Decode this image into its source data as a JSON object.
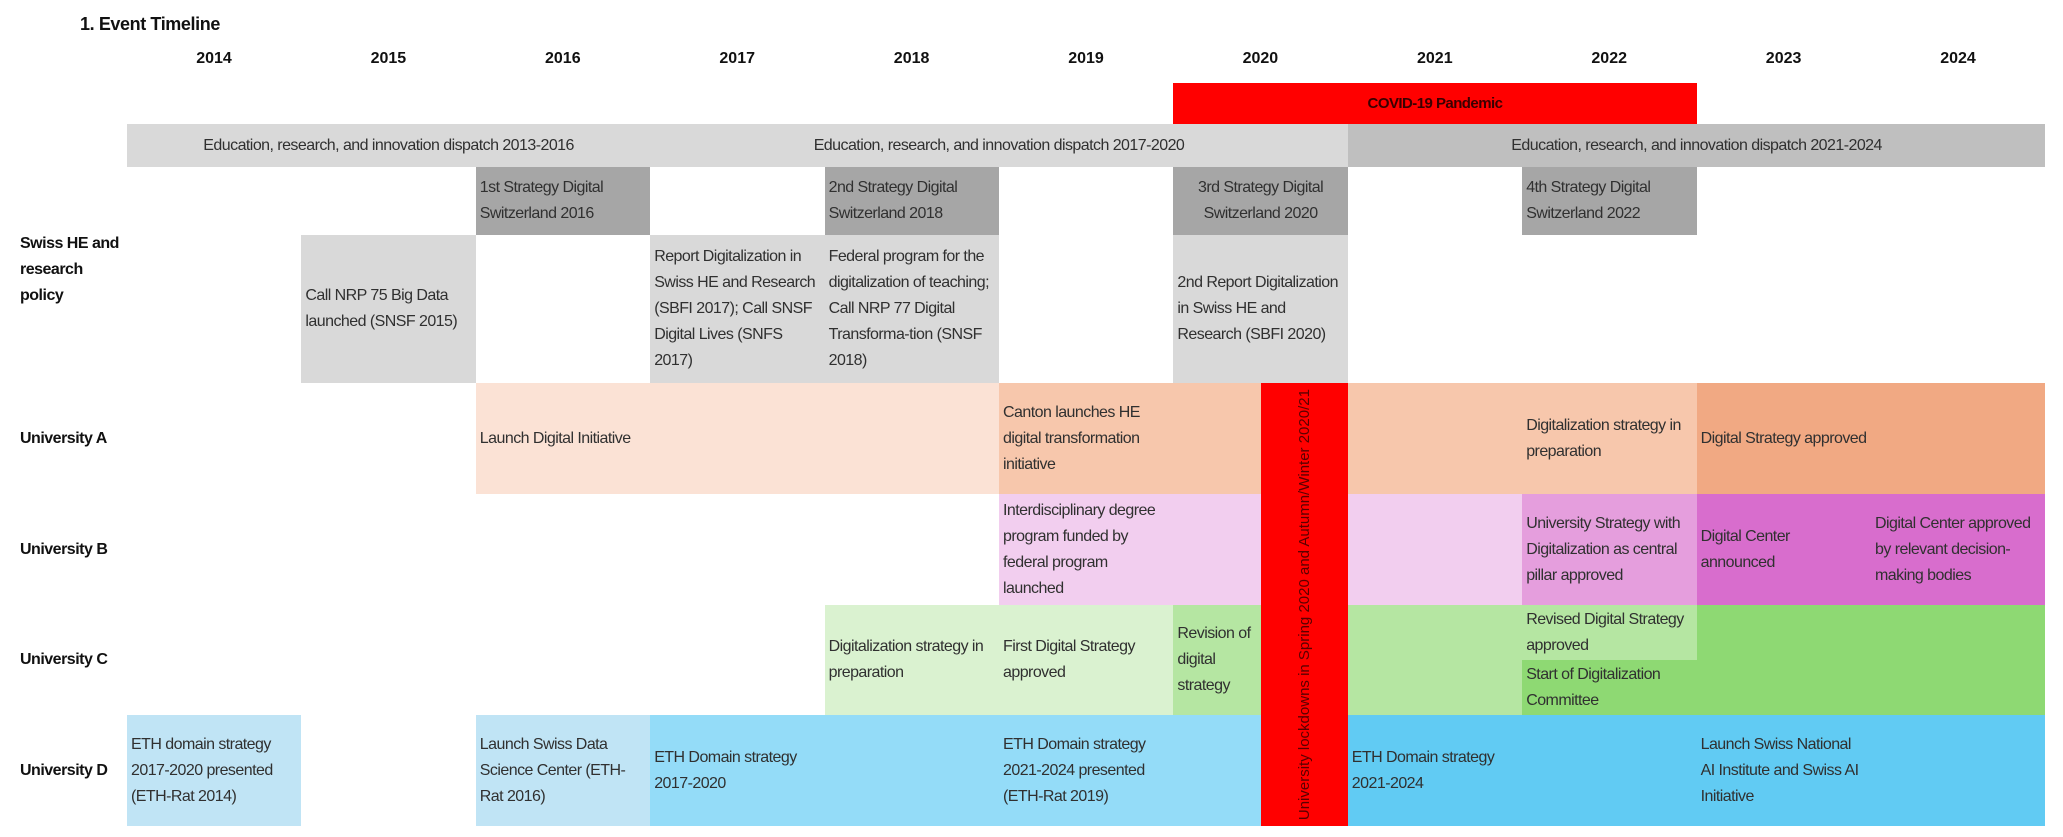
{
  "title": "1. Event Timeline",
  "years": [
    "2014",
    "2015",
    "2016",
    "2017",
    "2018",
    "2019",
    "2020",
    "2021",
    "2022",
    "2023",
    "2024"
  ],
  "row_labels": {
    "policy": "Swiss HE and research policy",
    "A": "University A",
    "B": "University B",
    "C": "University C",
    "D": "University D"
  },
  "blocks": [
    {
      "lane": "covid",
      "start": 2020,
      "end": 2023,
      "color": "#ff0000",
      "labels": [
        {
          "at": 2020,
          "span": 3,
          "text": "COVID-19 Pandemic",
          "style": "center bold"
        }
      ]
    },
    {
      "lane": "dispatch",
      "start": 2014,
      "end": 2017,
      "color": "#d9d9d9",
      "labels": [
        {
          "at": 2014,
          "span": 3,
          "text": "Education, research, and innovation dispatch 2013-2016",
          "style": "center"
        }
      ]
    },
    {
      "lane": "dispatch",
      "start": 2017,
      "end": 2021,
      "color": "#d9d9d9",
      "labels": [
        {
          "at": 2017,
          "span": 4,
          "text": "Education, research, and innovation dispatch 2017-2020",
          "style": "center"
        }
      ]
    },
    {
      "lane": "dispatch",
      "start": 2021,
      "end": 2025,
      "color": "#bfbfbf",
      "labels": [
        {
          "at": 2021,
          "span": 4,
          "text": "Education, research, and innovation dispatch 2021-2024",
          "style": "center"
        }
      ]
    },
    {
      "lane": "strategy",
      "start": 2016,
      "end": 2017,
      "color": "#a6a6a6",
      "labels": [
        {
          "at": 2016,
          "span": 1,
          "text": "1st Strategy Digital Switzerland 2016"
        }
      ]
    },
    {
      "lane": "strategy",
      "start": 2018,
      "end": 2019,
      "color": "#a6a6a6",
      "labels": [
        {
          "at": 2018,
          "span": 1,
          "text": "2nd Strategy Digital Switzerland 2018"
        }
      ]
    },
    {
      "lane": "strategy",
      "start": 2020,
      "end": 2021,
      "color": "#a6a6a6",
      "labels": [
        {
          "at": 2020,
          "span": 1,
          "text": "3rd Strategy Digital Switzerland 2020",
          "style": "center"
        }
      ]
    },
    {
      "lane": "strategy",
      "start": 2022,
      "end": 2023,
      "color": "#a6a6a6",
      "labels": [
        {
          "at": 2022,
          "span": 1,
          "text": "4th Strategy Digital Switzerland 2022"
        }
      ]
    },
    {
      "lane": "reports",
      "start": 2015,
      "end": 2016,
      "color": "#d9d9d9",
      "labels": [
        {
          "at": 2015,
          "span": 1,
          "text": "Call NRP 75 Big Data launched (SNSF 2015)"
        }
      ]
    },
    {
      "lane": "reports",
      "start": 2017,
      "end": 2018,
      "color": "#d9d9d9",
      "labels": [
        {
          "at": 2017,
          "span": 1,
          "text": "Report Digitalization in Swiss HE and Research (SBFI 2017); Call SNSF Digital Lives (SNFS 2017)"
        }
      ]
    },
    {
      "lane": "reports",
      "start": 2018,
      "end": 2019,
      "color": "#d9d9d9",
      "labels": [
        {
          "at": 2018,
          "span": 1,
          "text": "Federal program for the digitalization of teaching; Call NRP 77 Digital Transforma-tion (SNSF 2018)"
        }
      ]
    },
    {
      "lane": "reports",
      "start": 2020,
      "end": 2021,
      "color": "#d9d9d9",
      "labels": [
        {
          "at": 2020,
          "span": 1,
          "text": "2nd Report Digitalization in Swiss HE and Research (SBFI 2020)"
        }
      ]
    },
    {
      "lane": "A",
      "start": 2016,
      "end": 2019,
      "color": "#fbe2d5",
      "labels": [
        {
          "at": 2016,
          "span": 3,
          "text": "Launch Digital Initiative"
        }
      ]
    },
    {
      "lane": "A",
      "start": 2019,
      "end": 2023,
      "color": "#f7c7ac",
      "labels": [
        {
          "at": 2019,
          "span": 1,
          "text": "Canton launches HE digital transformation initiative"
        },
        {
          "at": 2022,
          "span": 1,
          "text": "Digitalization strategy in preparation"
        }
      ]
    },
    {
      "lane": "A",
      "start": 2023,
      "end": 2025,
      "color": "#f1a983",
      "labels": [
        {
          "at": 2023,
          "span": 1,
          "text": "Digital Strategy approved"
        }
      ]
    },
    {
      "lane": "B",
      "start": 2019,
      "end": 2022,
      "color": "#f2ceef",
      "labels": [
        {
          "at": 2019,
          "span": 1,
          "text": "Interdisciplinary degree program funded by federal program launched"
        }
      ]
    },
    {
      "lane": "B",
      "start": 2022,
      "end": 2023,
      "color": "#e59edd",
      "labels": [
        {
          "at": 2022,
          "span": 1,
          "text": "University Strategy with Digitalization as central pillar approved"
        }
      ]
    },
    {
      "lane": "B",
      "start": 2023,
      "end": 2025,
      "color": "#d86dcd",
      "labels": [
        {
          "at": 2023,
          "span": 1,
          "text": "Digital Center announced"
        },
        {
          "at": 2024,
          "span": 1,
          "text": "Digital Center approved by relevant decision-making bodies"
        }
      ]
    },
    {
      "lane": "C",
      "start": 2018,
      "end": 2020,
      "color": "#daf2d0",
      "labels": [
        {
          "at": 2018,
          "span": 1,
          "text": "Digitalization strategy in preparation"
        },
        {
          "at": 2019,
          "span": 1,
          "text": "First Digital Strategy approved"
        }
      ]
    },
    {
      "lane": "C",
      "start": 2020,
      "end": 2022,
      "color": "#b5e6a2",
      "labels": [
        {
          "at": 2020,
          "span": 0.5,
          "text": "Revision of digital strategy"
        }
      ]
    },
    {
      "lane": "C-top",
      "start": 2022,
      "end": 2023,
      "color": "#b5e6a2",
      "labels": [
        {
          "at": 2022,
          "span": 1,
          "text": "Revised Digital Strategy approved"
        }
      ]
    },
    {
      "lane": "C-bottom",
      "start": 2022,
      "end": 2023,
      "color": "#8ed973",
      "labels": [
        {
          "at": 2022,
          "span": 1,
          "text": "Start of Digitalization Committee"
        }
      ]
    },
    {
      "lane": "C",
      "start": 2023,
      "end": 2025,
      "color": "#8ed973",
      "labels": []
    },
    {
      "lane": "D",
      "start": 2014,
      "end": 2015,
      "color": "#c0e4f5",
      "labels": [
        {
          "at": 2014,
          "span": 1,
          "text": "ETH domain strategy 2017-2020 presented (ETH-Rat 2014)"
        }
      ]
    },
    {
      "lane": "D",
      "start": 2016,
      "end": 2017,
      "color": "#c0e4f5",
      "labels": [
        {
          "at": 2016,
          "span": 1,
          "text": "Launch Swiss Data Science Center (ETH-Rat 2016)"
        }
      ]
    },
    {
      "lane": "D",
      "start": 2017,
      "end": 2021,
      "color": "#94dcf8",
      "labels": [
        {
          "at": 2017,
          "span": 1,
          "text": "ETH Domain strategy 2017-2020"
        },
        {
          "at": 2019,
          "span": 1,
          "text": "ETH Domain strategy 2021-2024 presented (ETH-Rat 2019)"
        }
      ]
    },
    {
      "lane": "D",
      "start": 2021,
      "end": 2025,
      "color": "#61cbf3",
      "labels": [
        {
          "at": 2021,
          "span": 1,
          "text": "ETH Domain strategy 2021-2024"
        },
        {
          "at": 2023,
          "span": 1,
          "text": "Launch Swiss National AI Institute and Swiss AI Initiative"
        }
      ]
    }
  ],
  "lockdown": {
    "start": 2020.5,
    "end": 2021,
    "color": "#ff0000",
    "text": "University lockdowns in Spring 2020 and Autumn/Winter 2020/21"
  }
}
